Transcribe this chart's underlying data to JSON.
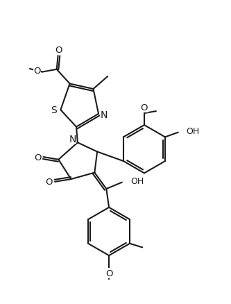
{
  "bg": "#ffffff",
  "lc": "#1a1a1a",
  "lw": 1.5,
  "fs": 9,
  "dpi": 100,
  "fw": 3.33,
  "fh": 4.39,
  "xlim": [
    0,
    10
  ],
  "ylim": [
    0,
    13.2
  ]
}
